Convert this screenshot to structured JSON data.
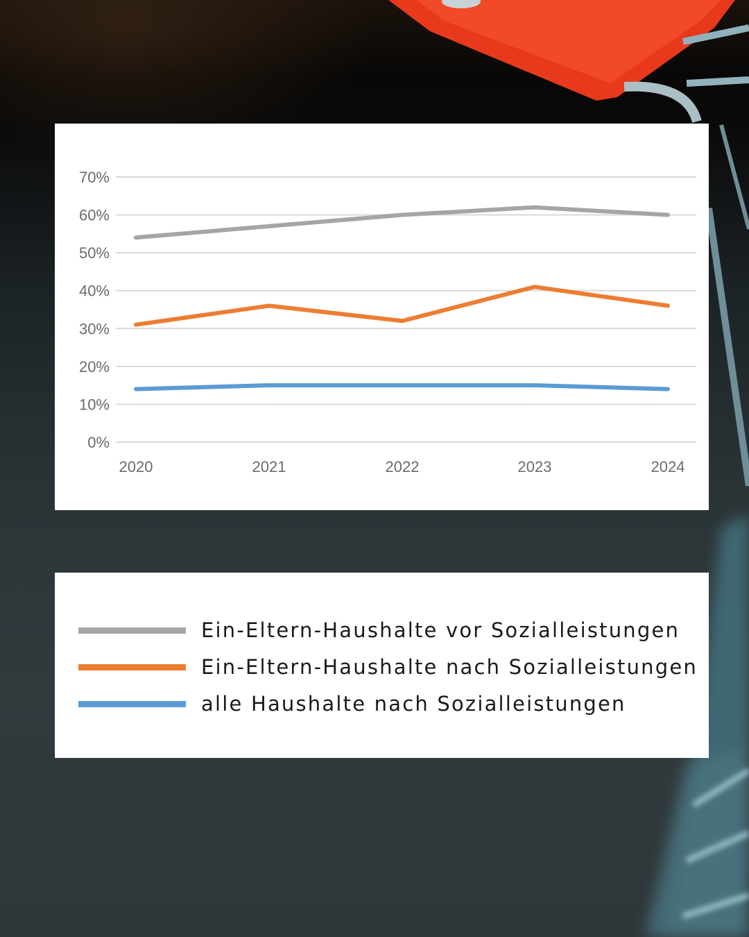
{
  "chart_data": {
    "type": "line",
    "x": [
      "2020",
      "2021",
      "2022",
      "2023",
      "2024"
    ],
    "y_ticks": [
      "0%",
      "10%",
      "20%",
      "30%",
      "40%",
      "50%",
      "60%",
      "70%"
    ],
    "ylim": [
      0,
      70
    ],
    "grid": true,
    "series": [
      {
        "name": "Ein-Eltern-Haushalte vor Sozialleistungen",
        "values": [
          54,
          57,
          60,
          62,
          60
        ],
        "color": "#a5a5a5"
      },
      {
        "name": "Ein-Eltern-Haushalte nach Sozialleistungen",
        "values": [
          31,
          36,
          32,
          41,
          36
        ],
        "color": "#ed7d31"
      },
      {
        "name": "alle Haushalte nach Sozialleistungen",
        "values": [
          14,
          15,
          15,
          15,
          14
        ],
        "color": "#5b9bd5"
      }
    ]
  }
}
